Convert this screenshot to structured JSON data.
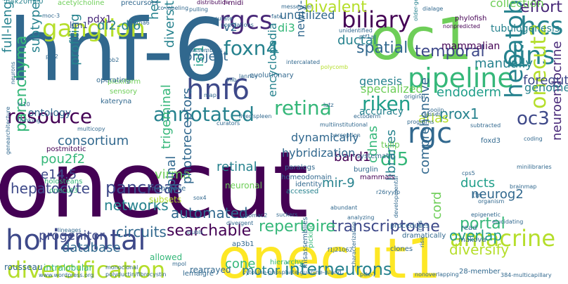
{
  "cloud": {
    "colors": {
      "dark_purple": "#440154",
      "purple": "#482878",
      "indigo": "#3e4989",
      "blue": "#31688e",
      "steel": "#26828e",
      "teal": "#1f9e89",
      "green": "#35b779",
      "lime": "#6ece58",
      "yellow_green": "#b5de2b",
      "yellow": "#fde725"
    },
    "words": [
      {
        "text": "onecut",
        "color": "#440154"
      },
      {
        "text": "hnf-6",
        "color": "#31688e"
      },
      {
        "text": "onecut1",
        "color": "#fde725"
      },
      {
        "text": "oc1",
        "color": "#6ece58"
      },
      {
        "text": "horizontal",
        "color": "#3e4989"
      },
      {
        "text": "diversification",
        "color": "#b5de2b"
      },
      {
        "text": "hnf6",
        "color": "#3e4989"
      },
      {
        "text": "pipeline",
        "color": "#35b779"
      },
      {
        "text": "rgcs",
        "color": "#482878"
      },
      {
        "text": "ganglion",
        "color": "#b5de2b"
      },
      {
        "text": "biliary",
        "color": "#440154"
      },
      {
        "text": "resource",
        "color": "#440154"
      },
      {
        "text": "annotated",
        "color": "#26828e"
      },
      {
        "text": "retina",
        "color": "#35b779"
      },
      {
        "text": "hepatoblasts",
        "color": "#26828e"
      },
      {
        "text": "riken",
        "color": "#1f9e89"
      },
      {
        "text": "rgc",
        "color": "#31688e"
      },
      {
        "text": "dins",
        "color": "#26828e"
      },
      {
        "text": "hcs",
        "color": "#26828e"
      },
      {
        "text": "foxn4",
        "color": "#26828e"
      },
      {
        "text": "oc3",
        "color": "#3e4989"
      },
      {
        "text": "amacrine",
        "color": "#b5de2b"
      },
      {
        "text": "interneurons",
        "color": "#26828e"
      },
      {
        "text": "pancreas",
        "color": "#3e4989"
      },
      {
        "text": "onecut2",
        "color": "#b5de2b"
      },
      {
        "text": "bivalent",
        "color": "#b5de2b"
      },
      {
        "text": "parenchyma",
        "color": "#35b779"
      },
      {
        "text": "effort",
        "color": "#482878"
      },
      {
        "text": "transcriptome",
        "color": "#3e4989"
      },
      {
        "text": "repertoire",
        "color": "#35b779"
      },
      {
        "text": "hepatocyte",
        "color": "#3e4989"
      },
      {
        "text": "networks",
        "color": "#26828e"
      },
      {
        "text": "consortium",
        "color": "#31688e"
      },
      {
        "text": "spatial",
        "color": "#31688e"
      },
      {
        "text": "temporal",
        "color": "#3e4989"
      },
      {
        "text": "neuroendocrine",
        "color": "#482878"
      },
      {
        "text": "searchable",
        "color": "#440154"
      },
      {
        "text": "circuits",
        "color": "#31688e"
      },
      {
        "text": "database",
        "color": "#31688e"
      },
      {
        "text": "portal",
        "color": "#35b779"
      },
      {
        "text": "overlap",
        "color": "#1f9e89"
      },
      {
        "text": "diversify",
        "color": "#b5de2b"
      },
      {
        "text": "cone",
        "color": "#35b779"
      },
      {
        "text": "motor",
        "color": "#26828e"
      },
      {
        "text": "progenitor",
        "color": "#3e4989"
      },
      {
        "text": "e14.5",
        "color": "#3e4989"
      },
      {
        "text": "pou2f2",
        "color": "#35b779"
      },
      {
        "text": "di5",
        "color": "#35b779"
      },
      {
        "text": "di2-di6",
        "color": "#26828e"
      },
      {
        "text": "prox1",
        "color": "#26828e"
      },
      {
        "text": "atlas",
        "color": "#b5de2b"
      },
      {
        "text": "ducts",
        "color": "#1f9e89"
      },
      {
        "text": "neurog2",
        "color": "#31688e"
      },
      {
        "text": "bard1",
        "color": "#440154"
      },
      {
        "text": "mir-9",
        "color": "#26828e"
      },
      {
        "text": "automated",
        "color": "#31688e"
      },
      {
        "text": "virma",
        "color": "#6ece58"
      },
      {
        "text": "spinal",
        "color": "#31688e"
      },
      {
        "text": "trigeminal",
        "color": "#35b779"
      },
      {
        "text": "photoreceptors",
        "color": "#31688e"
      },
      {
        "text": "cdnas",
        "color": "#35b779"
      },
      {
        "text": "libraries",
        "color": "#26828e"
      },
      {
        "text": "comprehensive",
        "color": "#31688e"
      },
      {
        "text": "cord",
        "color": "#6ece58"
      },
      {
        "text": "retinal",
        "color": "#26828e"
      },
      {
        "text": "encyclopedia",
        "color": "#26828e"
      },
      {
        "text": "dynamically",
        "color": "#31688e"
      },
      {
        "text": "hybridization",
        "color": "#31688e"
      },
      {
        "text": "profiling",
        "color": "#26828e"
      },
      {
        "text": "subtypes",
        "color": "#26828e"
      },
      {
        "text": "full-length",
        "color": "#26828e"
      },
      {
        "text": "diversity",
        "color": "#26828e"
      },
      {
        "text": "hepatogenesis",
        "color": "#26828e"
      },
      {
        "text": "isl1",
        "color": "#1f9e89"
      },
      {
        "text": "project",
        "color": "#31688e"
      },
      {
        "text": "v2",
        "color": "#31688e"
      },
      {
        "text": "di3",
        "color": "#35b779"
      },
      {
        "text": "unutilized",
        "color": "#31688e"
      },
      {
        "text": "newly-born",
        "color": "#31688e"
      },
      {
        "text": "ductal",
        "color": "#26828e"
      },
      {
        "text": "genesis",
        "color": "#26828e"
      },
      {
        "text": "specialized",
        "color": "#6ece58"
      },
      {
        "text": "endoderm",
        "color": "#1f9e89"
      },
      {
        "text": "foregut",
        "color": "#3e4989"
      },
      {
        "text": "genome",
        "color": "#26828e"
      },
      {
        "text": "manually",
        "color": "#26828e"
      },
      {
        "text": "mammalian",
        "color": "#440154"
      },
      {
        "text": "tubulogenesis",
        "color": "#26828e"
      },
      {
        "text": "collection",
        "color": "#6ece58"
      },
      {
        "text": "ontology",
        "color": "#31688e"
      },
      {
        "text": "accuracy",
        "color": "#26828e"
      },
      {
        "text": "rearrayed",
        "color": "#31688e"
      },
      {
        "text": "allowed",
        "color": "#35b779"
      },
      {
        "text": "lemaigre",
        "color": "#31688e"
      },
      {
        "text": "hierarchy",
        "color": "#35b779"
      },
      {
        "text": "rousseau",
        "color": "#31688e"
      },
      {
        "text": "intralobular",
        "color": "#35b779"
      },
      {
        "text": "holosteans",
        "color": "#35b779"
      },
      {
        "text": "onecut3",
        "color": "#35b779"
      },
      {
        "text": "postmitotic",
        "color": "#440154"
      },
      {
        "text": "neuronal",
        "color": "#6ece58"
      },
      {
        "text": "accessed",
        "color": "#26828e"
      },
      {
        "text": "subsets",
        "color": "#b5de2b"
      },
      {
        "text": "rnabrowse",
        "color": "#31688e"
      },
      {
        "text": "pdx1",
        "color": "#482878"
      },
      {
        "text": "lim1",
        "color": "#3e4989"
      },
      {
        "text": "ap3b1",
        "color": "#31688e"
      },
      {
        "text": "misassemblies",
        "color": "#31688e"
      },
      {
        "text": "makova",
        "color": "#31688e"
      },
      {
        "text": "dramatically",
        "color": "#31688e"
      },
      {
        "text": "procedures",
        "color": "#31688e"
      },
      {
        "text": "clones",
        "color": "#31688e"
      },
      {
        "text": "28-member",
        "color": "#31688e"
      },
      {
        "text": "tulip",
        "color": "#6ece58"
      },
      {
        "text": "systematic",
        "color": "#31688e"
      },
      {
        "text": "burglin",
        "color": "#31688e"
      },
      {
        "text": "mammals",
        "color": "#440154"
      },
      {
        "text": "paralogs",
        "color": "#31688e"
      },
      {
        "text": "homeodomain",
        "color": "#31688e"
      },
      {
        "text": "identity",
        "color": "#31688e"
      },
      {
        "text": "foxd3",
        "color": "#31688e"
      },
      {
        "text": "read",
        "color": "#31688e"
      },
      {
        "text": "tfn",
        "color": "#31688e"
      },
      {
        "text": "h4k20me0",
        "color": "#26828e"
      },
      {
        "text": "acetylcholine",
        "color": "#6ece58"
      },
      {
        "text": "precursors",
        "color": "#31688e"
      },
      {
        "text": "f-midi",
        "color": "#440154"
      },
      {
        "text": "distribution",
        "color": "#440154"
      },
      {
        "text": "plexiform",
        "color": "#6ece58"
      },
      {
        "text": "sensory",
        "color": "#6ece58"
      },
      {
        "text": "kateryna",
        "color": "#31688e"
      },
      {
        "text": "operating",
        "color": "#31688e"
      },
      {
        "text": "evolutionary",
        "color": "#31688e"
      },
      {
        "text": "populations",
        "color": "#31688e"
      },
      {
        "text": "intercalated",
        "color": "#31688e"
      },
      {
        "text": "accurate",
        "color": "#31688e"
      },
      {
        "text": "assemblies",
        "color": "#31688e"
      },
      {
        "text": "unidentified",
        "color": "#31688e"
      },
      {
        "text": "phylofish",
        "color": "#440154"
      },
      {
        "text": "nonpredicted",
        "color": "#440154"
      },
      {
        "text": "older-generated",
        "color": "#26828e"
      },
      {
        "text": "classes",
        "color": "#31688e"
      },
      {
        "text": "soojin",
        "color": "#31688e"
      },
      {
        "text": "programs",
        "color": "#31688e"
      },
      {
        "text": "subtracted",
        "color": "#31688e"
      },
      {
        "text": "coding",
        "color": "#31688e"
      },
      {
        "text": "minilibraries",
        "color": "#31688e"
      },
      {
        "text": "brainmap",
        "color": "#31688e"
      },
      {
        "text": "organism",
        "color": "#31688e"
      },
      {
        "text": "cps5",
        "color": "#31688e"
      },
      {
        "text": "r26ryyfp",
        "color": "#31688e"
      },
      {
        "text": "multiinstitutional",
        "color": "#31688e"
      },
      {
        "text": "sox4",
        "color": "#31688e"
      },
      {
        "text": "rhomac2",
        "color": "#31688e"
      },
      {
        "text": "curators",
        "color": "#31688e"
      },
      {
        "text": "lannoy",
        "color": "#31688e"
      },
      {
        "text": "lutz",
        "color": "#31688e"
      },
      {
        "text": "chrna6",
        "color": "#31688e"
      },
      {
        "text": "co-labeling",
        "color": "#31688e"
      },
      {
        "text": "stubls",
        "color": "#31688e"
      },
      {
        "text": "divergent",
        "color": "#31688e"
      },
      {
        "text": "suckers",
        "color": "#31688e"
      },
      {
        "text": "tc10",
        "color": "#31688e"
      },
      {
        "text": "neurons",
        "color": "#31688e"
      },
      {
        "text": "prc2",
        "color": "#31688e"
      },
      {
        "text": "job2",
        "color": "#31688e"
      },
      {
        "text": "moc-3",
        "color": "#31688e"
      },
      {
        "text": "polycomb",
        "color": "#b5de2b"
      },
      {
        "text": "perception",
        "color": "#31688e"
      },
      {
        "text": "analyzing",
        "color": "#31688e"
      },
      {
        "text": "lineages",
        "color": "#31688e"
      },
      {
        "text": "multicopy",
        "color": "#31688e"
      },
      {
        "text": "thinking",
        "color": "#31688e"
      },
      {
        "text": "original",
        "color": "#31688e"
      },
      {
        "text": "ectoderm",
        "color": "#31688e"
      },
      {
        "text": "infls",
        "color": "#31688e"
      },
      {
        "text": "risa",
        "color": "#31688e"
      },
      {
        "text": "picking",
        "color": "#35b779"
      },
      {
        "text": "characterization",
        "color": "#31688e"
      },
      {
        "text": "developmental",
        "color": "#31688e"
      },
      {
        "text": "genearchitecture",
        "color": "#31688e"
      },
      {
        "text": "mpol",
        "color": "#31688e"
      },
      {
        "text": "polyductin/fibrocystin",
        "color": "#31688e"
      },
      {
        "text": "www.wordpress.org",
        "color": "#31688e"
      },
      {
        "text": "cytosine-phosphate-guanine-island",
        "color": "#31688e"
      },
      {
        "text": "pdx-1",
        "color": "#31688e"
      },
      {
        "text": "384-multicapillary",
        "color": "#31688e"
      },
      {
        "text": "f1j21062",
        "color": "#31688e"
      },
      {
        "text": "ptf1a",
        "color": "#31688e"
      },
      {
        "text": "messenger",
        "color": "#31688e"
      },
      {
        "text": "dialage",
        "color": "#31688e"
      },
      {
        "text": "pulling",
        "color": "#31688e"
      },
      {
        "text": "fate",
        "color": "#31688e"
      },
      {
        "text": "inib",
        "color": "#31688e"
      },
      {
        "text": "map",
        "color": "#31688e"
      },
      {
        "text": "liver/spleen",
        "color": "#31688e"
      },
      {
        "text": "epigenetic",
        "color": "#31688e"
      },
      {
        "text": "elucidating",
        "color": "#31688e"
      },
      {
        "text": "abundant",
        "color": "#31688e"
      },
      {
        "text": "nonoverlapping",
        "color": "#31688e"
      },
      {
        "text": "monoclonal",
        "color": "#31688e"
      }
    ]
  }
}
